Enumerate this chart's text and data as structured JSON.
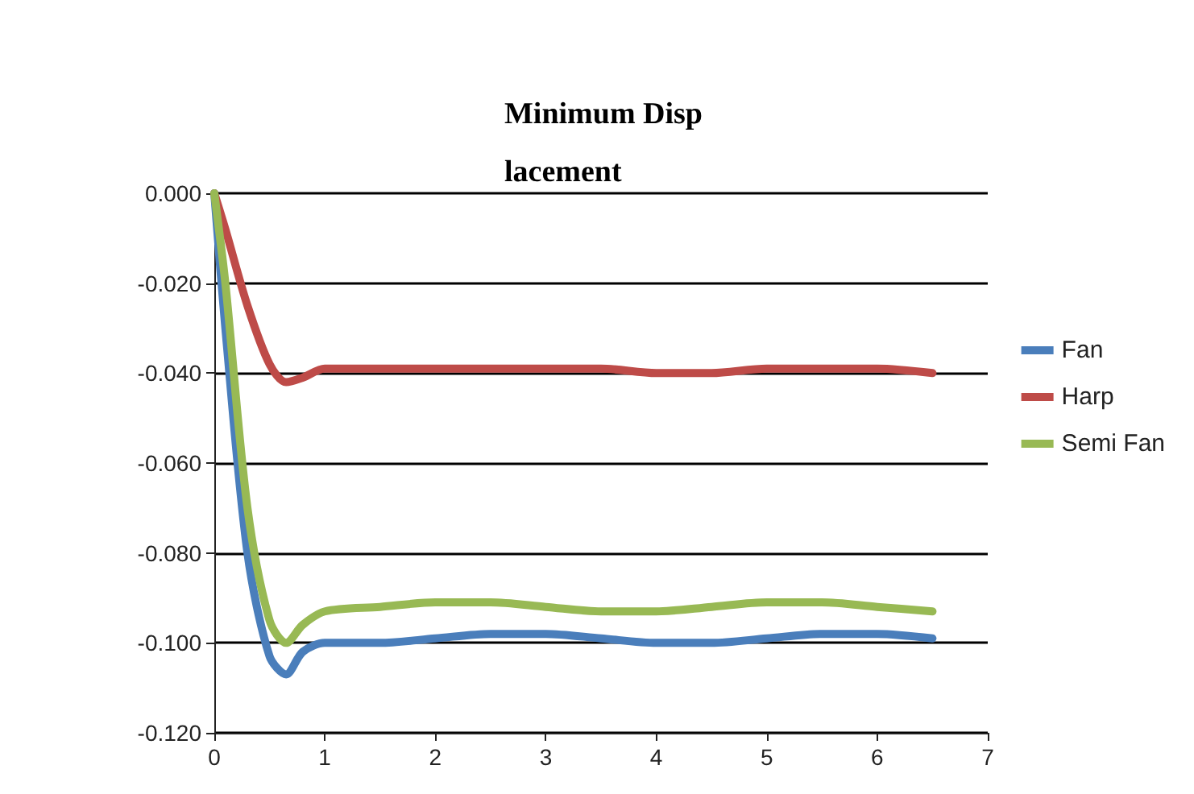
{
  "chart_data": {
    "type": "line",
    "title": "Minimum Displacement",
    "x": [
      0,
      0.1,
      0.3,
      0.5,
      0.65,
      0.8,
      1,
      1.5,
      2,
      2.5,
      3,
      3.5,
      4,
      4.5,
      5,
      5.5,
      6,
      6.5
    ],
    "series": [
      {
        "name": "Fan",
        "color": "#4a7ebb",
        "values": [
          0,
          -0.03,
          -0.08,
          -0.103,
          -0.107,
          -0.102,
          -0.1,
          -0.1,
          -0.099,
          -0.098,
          -0.098,
          -0.099,
          -0.1,
          -0.1,
          -0.099,
          -0.098,
          -0.098,
          -0.099
        ]
      },
      {
        "name": "Harp",
        "color": "#be4b48",
        "values": [
          0,
          -0.008,
          -0.025,
          -0.038,
          -0.042,
          -0.041,
          -0.039,
          -0.039,
          -0.039,
          -0.039,
          -0.039,
          -0.039,
          -0.04,
          -0.04,
          -0.039,
          -0.039,
          -0.039,
          -0.04
        ]
      },
      {
        "name": "Semi Fan",
        "color": "#98b954",
        "values": [
          0,
          -0.02,
          -0.07,
          -0.095,
          -0.1,
          -0.096,
          -0.093,
          -0.092,
          -0.091,
          -0.091,
          -0.092,
          -0.093,
          -0.093,
          -0.092,
          -0.091,
          -0.091,
          -0.092,
          -0.093
        ]
      }
    ],
    "xlim": [
      0,
      7
    ],
    "xticks": [
      0,
      1,
      2,
      3,
      4,
      5,
      6,
      7
    ],
    "ylim": [
      -0.12,
      0
    ],
    "yticks": [
      {
        "value": -0.12,
        "label": "-0.120"
      },
      {
        "value": -0.1,
        "label": "-0.100"
      },
      {
        "value": -0.08,
        "label": "-0.080"
      },
      {
        "value": -0.06,
        "label": "-0.060"
      },
      {
        "value": -0.04,
        "label": "-0.040"
      },
      {
        "value": -0.02,
        "label": "-0.020"
      },
      {
        "value": 0,
        "label": "0.000"
      }
    ],
    "grid": "y",
    "legend": "right",
    "marker": "none",
    "line_style": "solid"
  }
}
